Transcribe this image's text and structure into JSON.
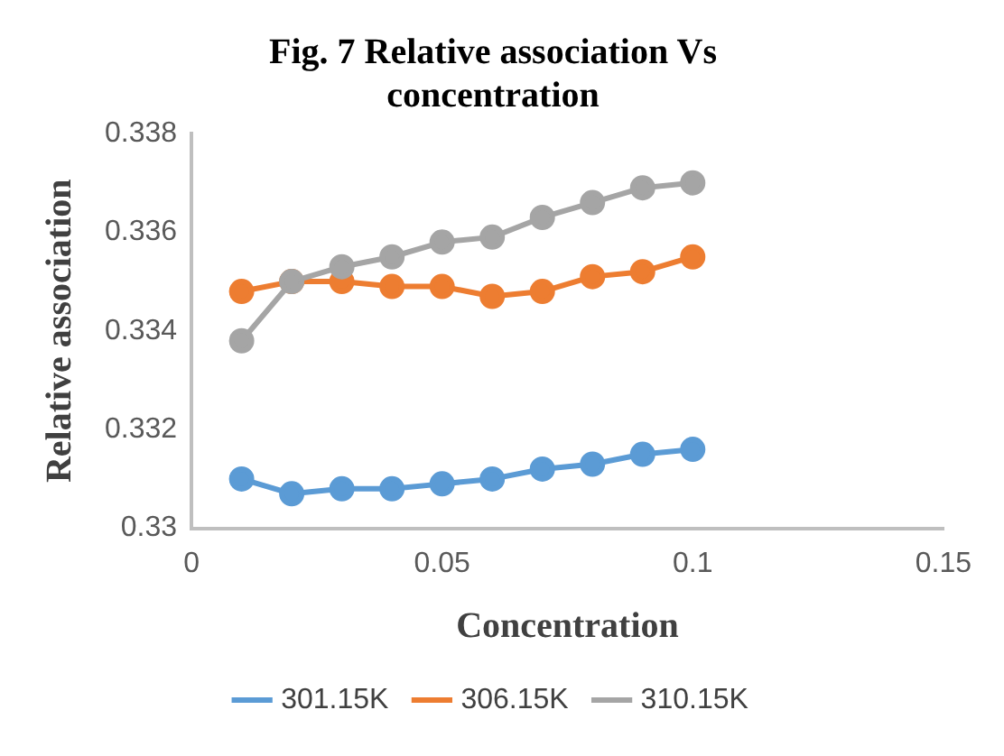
{
  "chart_data": {
    "type": "line",
    "title": [
      "Fig. 7 Relative association Vs",
      "concentration"
    ],
    "xlabel": "Concentration",
    "ylabel": "Relative association",
    "x": [
      0.01,
      0.02,
      0.03,
      0.04,
      0.05,
      0.06,
      0.07,
      0.08,
      0.09,
      0.1
    ],
    "series": [
      {
        "name": "301.15K",
        "color": "#5b9bd5",
        "values": [
          0.331,
          0.3307,
          0.3308,
          0.3308,
          0.3309,
          0.331,
          0.3312,
          0.3313,
          0.3315,
          0.3316
        ]
      },
      {
        "name": "306.15K",
        "color": "#ed7d31",
        "values": [
          0.3348,
          0.335,
          0.335,
          0.3349,
          0.3349,
          0.3347,
          0.3348,
          0.3351,
          0.3352,
          0.3355
        ]
      },
      {
        "name": "310.15K",
        "color": "#a5a5a5",
        "values": [
          0.3338,
          0.335,
          0.3353,
          0.3355,
          0.3358,
          0.3359,
          0.3363,
          0.3366,
          0.3369,
          0.337
        ]
      }
    ],
    "xlim": [
      0,
      0.15
    ],
    "xticks": [
      0,
      0.05,
      0.1,
      0.15
    ],
    "ylim": [
      0.33,
      0.338
    ],
    "yticks": [
      {
        "value": 0.33,
        "label": "0.33"
      },
      0.332,
      0.334,
      0.336,
      0.338
    ],
    "grid": false,
    "legend": "bottom",
    "marker": "circle",
    "line_style": "solid"
  }
}
